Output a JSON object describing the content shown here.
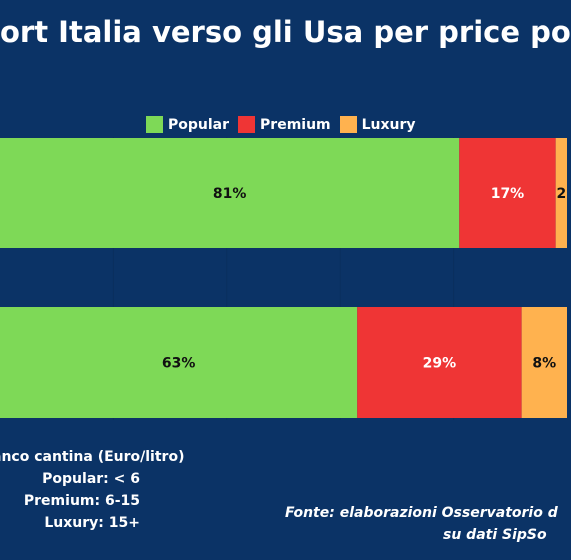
{
  "title": "ort Italia verso gli Usa per price po",
  "legend": [
    {
      "label": "Popular",
      "color": "#7ed957"
    },
    {
      "label": "Premium",
      "color": "#ef3535"
    },
    {
      "label": "Luxury",
      "color": "#ffb24f"
    }
  ],
  "chart_data": {
    "type": "bar",
    "orientation": "horizontal",
    "stacked": true,
    "categories": [
      "",
      ""
    ],
    "series": [
      {
        "name": "Popular",
        "values": [
          81,
          63
        ],
        "labels": [
          "81%",
          "63%"
        ],
        "color": "#7ed957"
      },
      {
        "name": "Premium",
        "values": [
          17,
          29
        ],
        "labels": [
          "17%",
          "29%"
        ],
        "color": "#ef3535"
      },
      {
        "name": "Luxury",
        "values": [
          2,
          8
        ],
        "labels": [
          "2",
          "8%"
        ],
        "color": "#ffb24f"
      }
    ],
    "xlim": [
      0,
      100
    ],
    "grid": true,
    "legend_position": "top"
  },
  "notes": {
    "heading": "anco cantina (Euro/litro)",
    "rows": [
      "Popular: < 6",
      "Premium: 6-15",
      "Luxury: 15+"
    ]
  },
  "source": {
    "line1": "Fonte: elaborazioni Osservatorio d",
    "line2": "su dati SipSo"
  }
}
